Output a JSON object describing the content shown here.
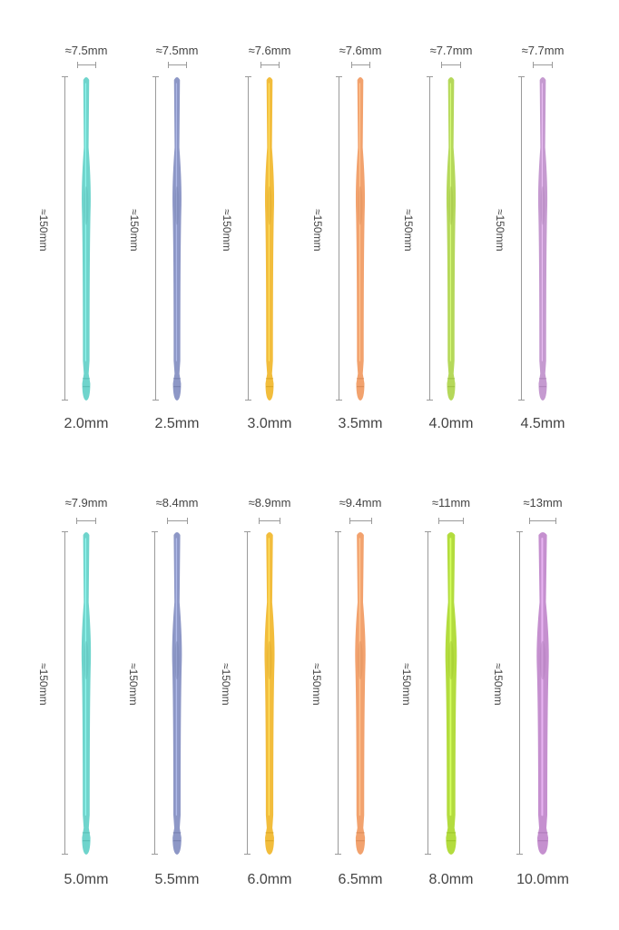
{
  "rows": [
    {
      "hooks": [
        {
          "size": "2.0mm",
          "width": "≈7.5mm",
          "length": "≈150mm",
          "color": "#6fd4cc",
          "thickness": 0.55
        },
        {
          "size": "2.5mm",
          "width": "≈7.5mm",
          "length": "≈150mm",
          "color": "#8d97c6",
          "thickness": 0.55
        },
        {
          "size": "3.0mm",
          "width": "≈7.6mm",
          "length": "≈150mm",
          "color": "#f2bd3c",
          "thickness": 0.57
        },
        {
          "size": "3.5mm",
          "width": "≈7.6mm",
          "length": "≈150mm",
          "color": "#f2a26e",
          "thickness": 0.57
        },
        {
          "size": "4.0mm",
          "width": "≈7.7mm",
          "length": "≈150mm",
          "color": "#b5d85a",
          "thickness": 0.58
        },
        {
          "size": "4.5mm",
          "width": "≈7.7mm",
          "length": "≈150mm",
          "color": "#c59ad0",
          "thickness": 0.58
        }
      ]
    },
    {
      "hooks": [
        {
          "size": "5.0mm",
          "width": "≈7.9mm",
          "length": "≈150mm",
          "color": "#6fd4cc",
          "thickness": 0.6
        },
        {
          "size": "5.5mm",
          "width": "≈8.4mm",
          "length": "≈150mm",
          "color": "#8d97c6",
          "thickness": 0.66
        },
        {
          "size": "6.0mm",
          "width": "≈8.9mm",
          "length": "≈150mm",
          "color": "#f2bd3c",
          "thickness": 0.7
        },
        {
          "size": "6.5mm",
          "width": "≈9.4mm",
          "length": "≈150mm",
          "color": "#f2a26e",
          "thickness": 0.75
        },
        {
          "size": "8.0mm",
          "width": "≈11mm",
          "length": "≈150mm",
          "color": "#b3dc3e",
          "thickness": 0.9
        },
        {
          "size": "10.0mm",
          "width": "≈13mm",
          "length": "≈150mm",
          "color": "#c590cf",
          "thickness": 1.0
        }
      ]
    }
  ]
}
